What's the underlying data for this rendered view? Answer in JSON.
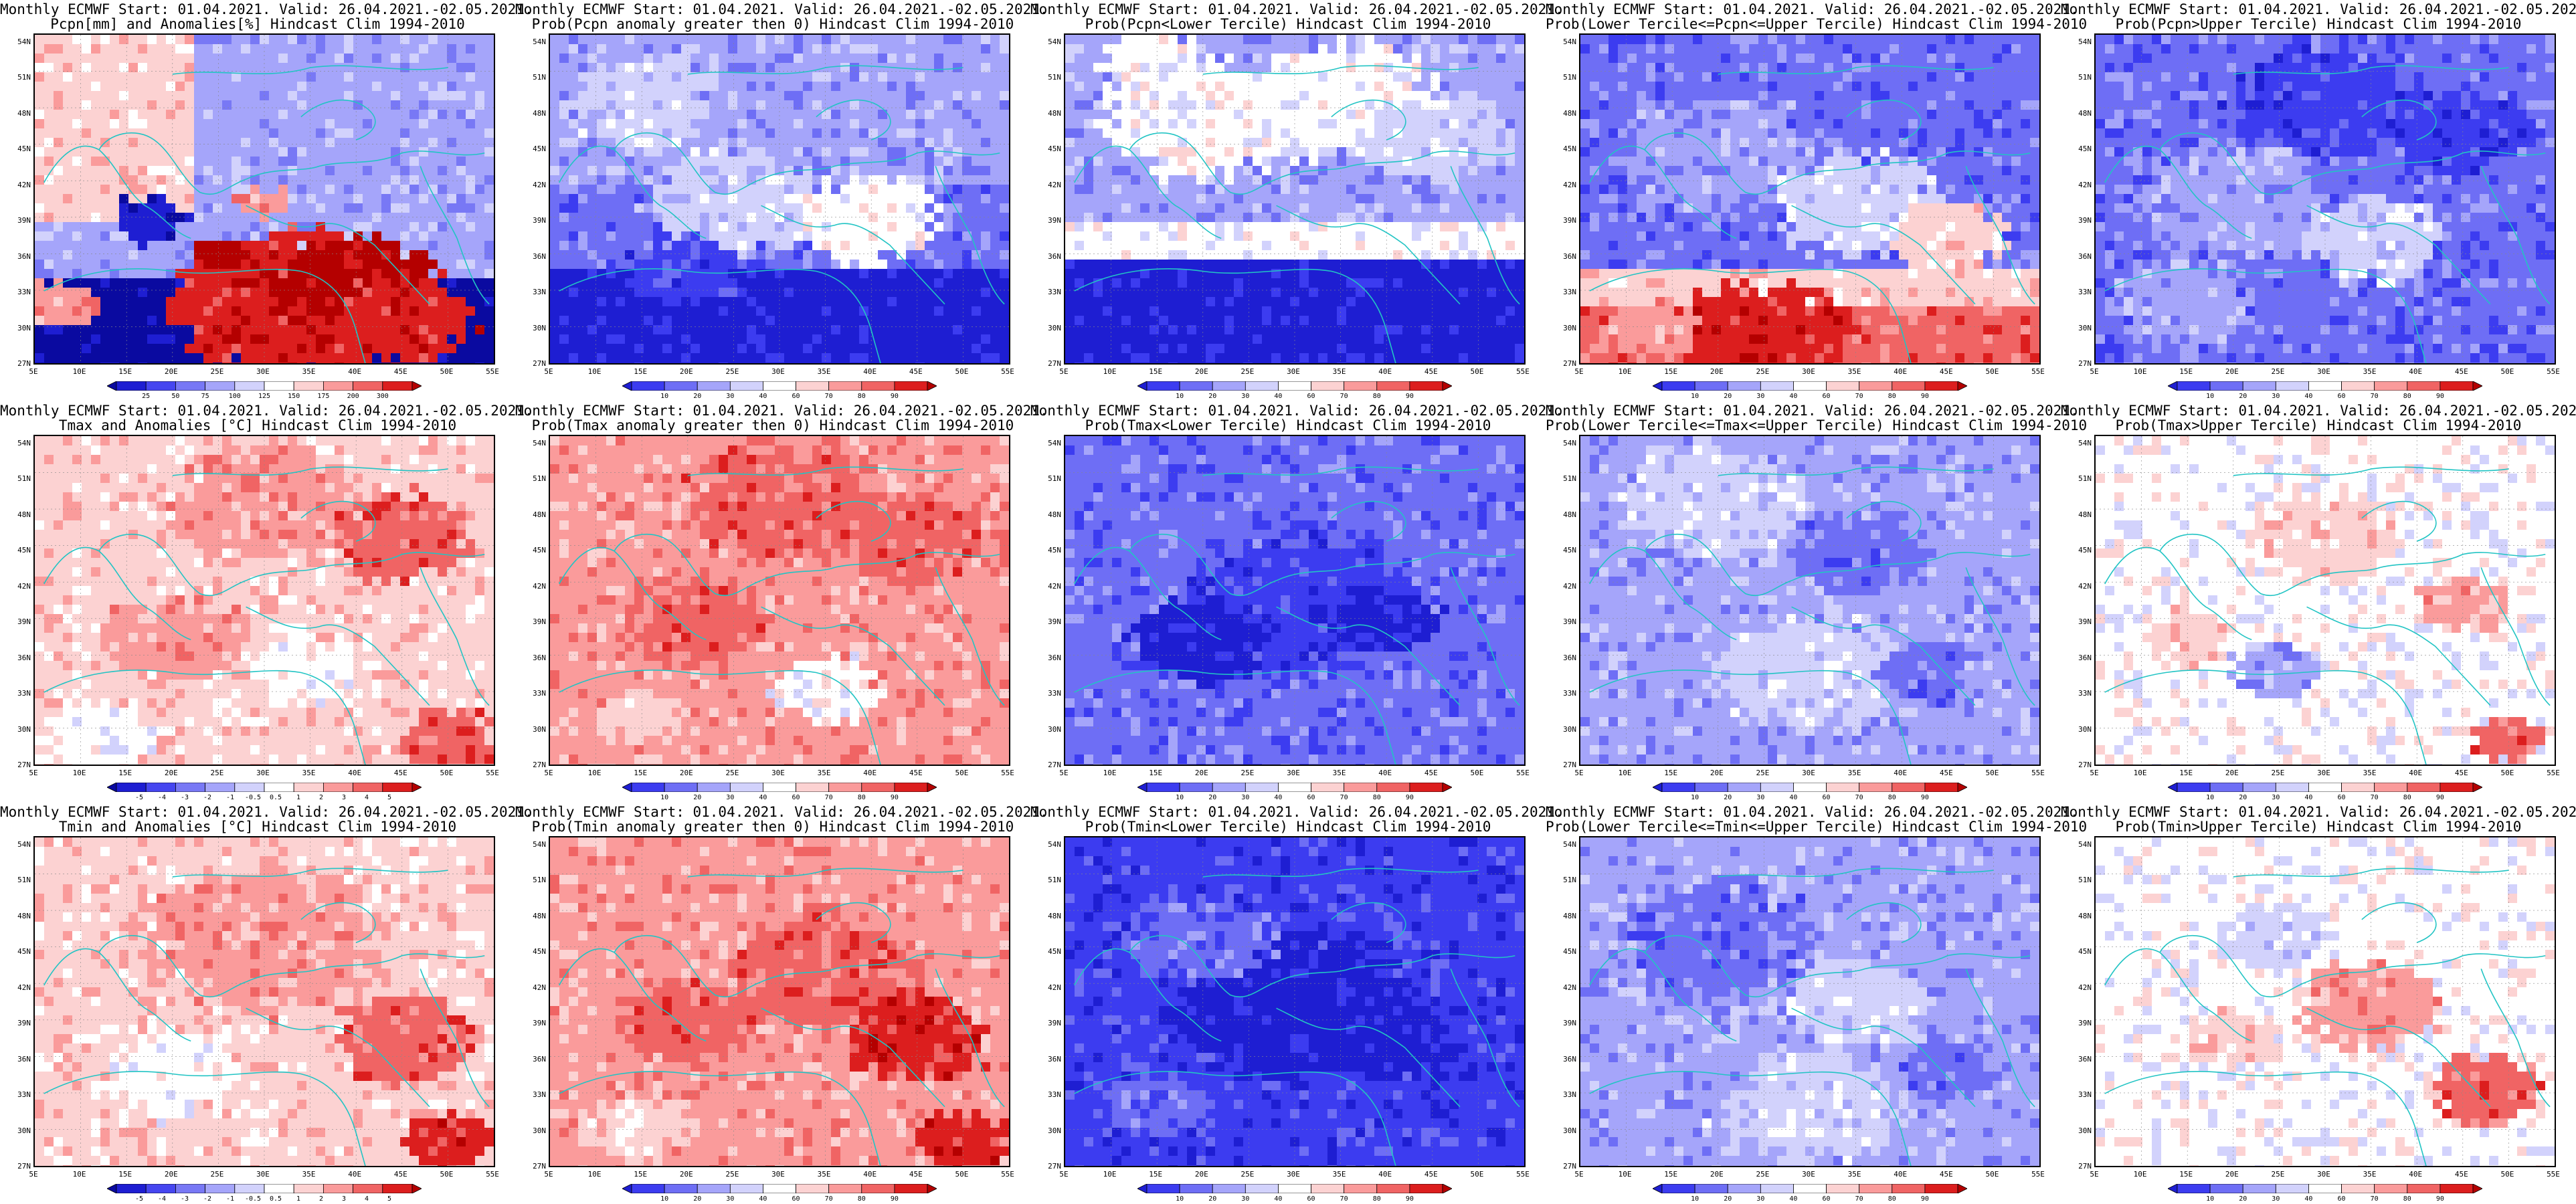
{
  "lat_labels": [
    "54N",
    "51N",
    "48N",
    "45N",
    "42N",
    "39N",
    "36N",
    "33N",
    "30N",
    "27N"
  ],
  "lon_labels": [
    "5E",
    "10E",
    "15E",
    "20E",
    "25E",
    "30E",
    "35E",
    "40E",
    "45E",
    "50E",
    "55E"
  ],
  "palettes": {
    "prob": [
      "#1e1ed2",
      "#3c3cf0",
      "#6e6ef5",
      "#a5a5fa",
      "#d2d2fc",
      "#ffffff",
      "#fcd2d2",
      "#fa9b9b",
      "#f06464",
      "#dc1e1e",
      "#b40000"
    ],
    "anom": [
      "#0a0aa0",
      "#1e1ed2",
      "#4646f0",
      "#7878f5",
      "#a5a5fa",
      "#d2d2fc",
      "#ffffff",
      "#fcd2d2",
      "#fa9b9b",
      "#f06464",
      "#dc1e1e",
      "#b40000"
    ]
  },
  "colorbars": {
    "precip": {
      "palette": "anom",
      "labels": [
        "25",
        "50",
        "75",
        "100",
        "125",
        "150",
        "175",
        "200",
        "300"
      ]
    },
    "prob": {
      "palette": "prob",
      "labels": [
        "10",
        "20",
        "30",
        "40",
        "60",
        "70",
        "80",
        "90"
      ]
    },
    "temp": {
      "palette": "anom",
      "labels": [
        "-5",
        "-4",
        "-3",
        "-2",
        "-1",
        "-0.5",
        "0.5",
        "1",
        "2",
        "3",
        "4",
        "5"
      ]
    }
  },
  "panels": [
    {
      "line1": "Monthly ECMWF Start: 01.04.2021. Valid: 26.04.2021.-02.05.2021.",
      "line2": "Pcpn[mm] and Anomalies[%] Hindcast Clim 1994-2010",
      "colorbar": "precip",
      "map": "precip_anom"
    },
    {
      "line1": "Monthly ECMWF Start: 01.04.2021. Valid: 26.04.2021.-02.05.2021.",
      "line2": "Prob(Pcpn anomaly greater then 0) Hindcast Clim 1994-2010",
      "colorbar": "prob",
      "map": "pcp_pos"
    },
    {
      "line1": "Monthly ECMWF Start: 01.04.2021. Valid: 26.04.2021.-02.05.2021.",
      "line2": "Prob(Pcpn<Lower Tercile) Hindcast Clim 1994-2010",
      "colorbar": "prob",
      "map": "pcp_lower"
    },
    {
      "line1": "Monthly ECMWF Start: 01.04.2021. Valid: 26.04.2021.-02.05.2021.",
      "line2": "Prob(Lower Tercile<=Pcpn<=Upper Tercile) Hindcast Clim 1994-2010",
      "colorbar": "prob",
      "map": "pcp_mid"
    },
    {
      "line1": "Monthly ECMWF Start: 01.04.2021. Valid: 26.04.2021.-02.05.2021.",
      "line2": "Prob(Pcpn>Upper Tercile) Hindcast Clim 1994-2010",
      "colorbar": "prob",
      "map": "pcp_upper"
    },
    {
      "line1": "Monthly ECMWF Start: 01.04.2021. Valid: 26.04.2021.-02.05.2021.",
      "line2": "Tmax and Anomalies [°C] Hindcast Clim 1994-2010",
      "colorbar": "temp",
      "map": "tmax_anom"
    },
    {
      "line1": "Monthly ECMWF Start: 01.04.2021. Valid: 26.04.2021.-02.05.2021.",
      "line2": "Prob(Tmax anomaly greater then 0) Hindcast Clim 1994-2010",
      "colorbar": "prob",
      "map": "tmax_pos"
    },
    {
      "line1": "Monthly ECMWF Start: 01.04.2021. Valid: 26.04.2021.-02.05.2021.",
      "line2": "Prob(Tmax<Lower Tercile) Hindcast Clim 1994-2010",
      "colorbar": "prob",
      "map": "tmax_lower"
    },
    {
      "line1": "Monthly ECMWF Start: 01.04.2021. Valid: 26.04.2021.-02.05.2021.",
      "line2": "Prob(Lower Tercile<=Tmax<=Upper Tercile) Hindcast Clim 1994-2010",
      "colorbar": "prob",
      "map": "tmax_mid"
    },
    {
      "line1": "Monthly ECMWF Start: 01.04.2021. Valid: 26.04.2021.-02.05.2021.",
      "line2": "Prob(Tmax>Upper Tercile) Hindcast Clim 1994-2010",
      "colorbar": "prob",
      "map": "tmax_upper"
    },
    {
      "line1": "Monthly ECMWF Start: 01.04.2021. Valid: 26.04.2021.-02.05.2021.",
      "line2": "Tmin and Anomalies [°C] Hindcast Clim 1994-2010",
      "colorbar": "temp",
      "map": "tmin_anom"
    },
    {
      "line1": "Monthly ECMWF Start: 01.04.2021. Valid: 26.04.2021.-02.05.2021.",
      "line2": "Prob(Tmin anomaly greater then 0) Hindcast Clim 1994-2010",
      "colorbar": "prob",
      "map": "tmin_pos"
    },
    {
      "line1": "Monthly ECMWF Start: 01.04.2021. Valid: 26.04.2021.-02.05.2021.",
      "line2": "Prob(Tmin<Lower Tercile) Hindcast Clim 1994-2010",
      "colorbar": "prob",
      "map": "tmin_lower"
    },
    {
      "line1": "Monthly ECMWF Start: 01.04.2021. Valid: 26.04.2021.-02.05.2021.",
      "line2": "Prob(Lower Tercile<=Tmin<=Upper Tercile) Hindcast Clim 1994-2010",
      "colorbar": "prob",
      "map": "tmin_mid"
    },
    {
      "line1": "Monthly ECMWF Start: 01.04.2021. Valid: 26.04.2021.-02.05.2021.",
      "line2": "Prob(Tmin>Upper Tercile) Hindcast Clim 1994-2010",
      "colorbar": "prob",
      "map": "tmin_upper"
    }
  ]
}
